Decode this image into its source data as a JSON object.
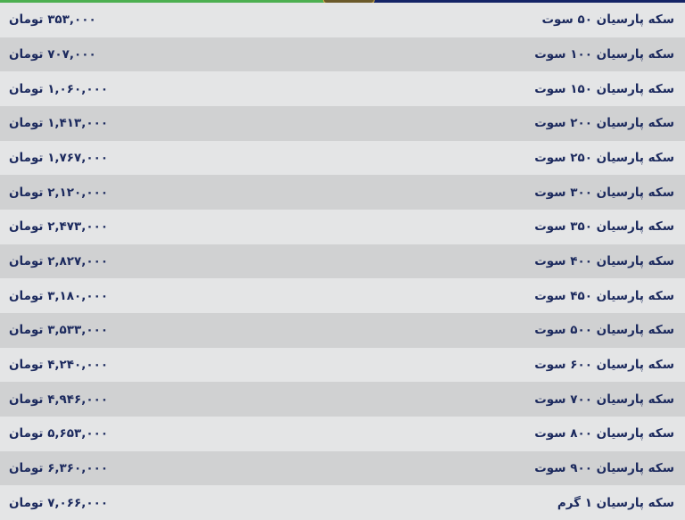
{
  "colors": {
    "accent_green": "#4caf50",
    "accent_navy": "#142466",
    "gold": "#d9b24a",
    "text": "#1c2a5e"
  },
  "rows": [
    {
      "name": "سکه پارسیان ۵۰ سوت",
      "price": "۳۵۳,۰۰۰ تومان"
    },
    {
      "name": "سکه پارسیان ۱۰۰ سوت",
      "price": "۷۰۷,۰۰۰ تومان"
    },
    {
      "name": "سکه پارسیان ۱۵۰ سوت",
      "price": "۱,۰۶۰,۰۰۰ تومان"
    },
    {
      "name": "سکه پارسیان ۲۰۰ سوت",
      "price": "۱,۴۱۳,۰۰۰ تومان"
    },
    {
      "name": "سکه پارسیان ۲۵۰ سوت",
      "price": "۱,۷۶۷,۰۰۰ تومان"
    },
    {
      "name": "سکه پارسیان ۳۰۰ سوت",
      "price": "۲,۱۲۰,۰۰۰ تومان"
    },
    {
      "name": "سکه پارسیان ۳۵۰ سوت",
      "price": "۲,۴۷۳,۰۰۰ تومان"
    },
    {
      "name": "سکه پارسیان ۴۰۰ سوت",
      "price": "۲,۸۲۷,۰۰۰ تومان"
    },
    {
      "name": "سکه پارسیان ۴۵۰ سوت",
      "price": "۳,۱۸۰,۰۰۰ تومان"
    },
    {
      "name": "سکه پارسیان ۵۰۰ سوت",
      "price": "۳,۵۳۳,۰۰۰ تومان"
    },
    {
      "name": "سکه پارسیان ۶۰۰ سوت",
      "price": "۴,۲۴۰,۰۰۰ تومان"
    },
    {
      "name": "سکه پارسیان ۷۰۰ سوت",
      "price": "۴,۹۴۶,۰۰۰ تومان"
    },
    {
      "name": "سکه پارسیان ۸۰۰ سوت",
      "price": "۵,۶۵۳,۰۰۰ تومان"
    },
    {
      "name": "سکه پارسیان ۹۰۰ سوت",
      "price": "۶,۳۶۰,۰۰۰ تومان"
    },
    {
      "name": "سکه پارسیان ۱ گرم",
      "price": "۷,۰۶۶,۰۰۰ تومان"
    }
  ]
}
